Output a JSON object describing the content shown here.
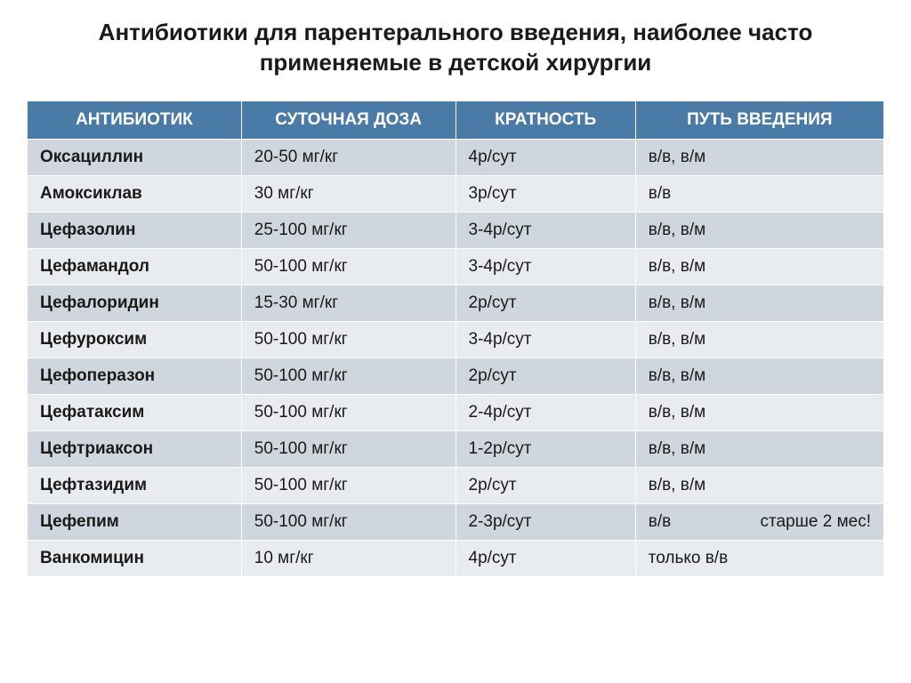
{
  "title": "Антибиотики для парентерального введения, наиболее часто применяемые в детской хирургии",
  "table": {
    "columns": [
      "АНТИБИОТИК",
      "СУТОЧНАЯ ДОЗА",
      "КРАТНОСТЬ",
      "ПУТЬ ВВЕДЕНИЯ"
    ],
    "rows": [
      {
        "name": "Оксациллин",
        "dose": "20-50 мг/кг",
        "freq": "4р/сут",
        "route": "в/в, в/м",
        "note": ""
      },
      {
        "name": "Амоксиклав",
        "dose": "30 мг/кг",
        "freq": "3р/сут",
        "route": "в/в",
        "note": ""
      },
      {
        "name": "Цефазолин",
        "dose": "25-100 мг/кг",
        "freq": "3-4р/сут",
        "route": "в/в, в/м",
        "note": ""
      },
      {
        "name": "Цефамандол",
        "dose": "50-100 мг/кг",
        "freq": "3-4р/сут",
        "route": "в/в, в/м",
        "note": ""
      },
      {
        "name": "Цефалоридин",
        "dose": "15-30 мг/кг",
        "freq": "2р/сут",
        "route": "в/в, в/м",
        "note": ""
      },
      {
        "name": "Цефуроксим",
        "dose": "50-100 мг/кг",
        "freq": "3-4р/сут",
        "route": "в/в, в/м",
        "note": ""
      },
      {
        "name": "Цефоперазон",
        "dose": "50-100 мг/кг",
        "freq": "2р/сут",
        "route": "в/в, в/м",
        "note": ""
      },
      {
        "name": "Цефатаксим",
        "dose": "50-100 мг/кг",
        "freq": "2-4р/сут",
        "route": "в/в, в/м",
        "note": ""
      },
      {
        "name": "Цефтриаксон",
        "dose": "50-100 мг/кг",
        "freq": "1-2р/сут",
        "route": "в/в, в/м",
        "note": ""
      },
      {
        "name": "Цефтазидим",
        "dose": "50-100 мг/кг",
        "freq": "2р/сут",
        "route": "в/в, в/м",
        "note": ""
      },
      {
        "name": "Цефепим",
        "dose": "50-100 мг/кг",
        "freq": "2-3р/сут",
        "route": "в/в",
        "note": "старше 2 мес!"
      },
      {
        "name": "Ванкомицин",
        "dose": "10 мг/кг",
        "freq": "4р/сут",
        "route": "только в/в",
        "note": ""
      }
    ],
    "header_bg": "#4a7ba6",
    "header_color": "#ffffff",
    "row_odd_bg": "#cfd6dd",
    "row_even_bg": "#e9ecef",
    "border_color": "#ffffff",
    "text_color": "#1a1a1a",
    "column_widths": [
      "25%",
      "25%",
      "21%",
      "29%"
    ],
    "title_fontsize": 26,
    "header_fontsize": 19,
    "cell_fontsize": 19
  }
}
